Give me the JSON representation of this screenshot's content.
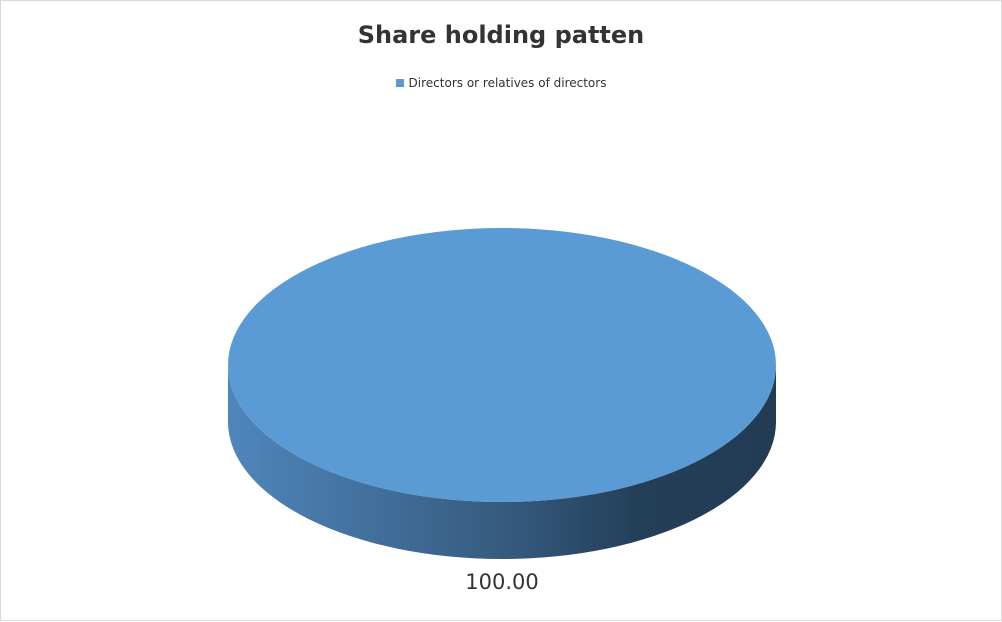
{
  "chart_data": {
    "type": "pie",
    "title": "Share holding patten",
    "categories": [
      "Directors or relatives of directors"
    ],
    "values": [
      100.0
    ],
    "data_labels": [
      "100.00"
    ],
    "legend_position": "top",
    "colors": [
      "#5b9bd5"
    ],
    "style": "3d"
  }
}
